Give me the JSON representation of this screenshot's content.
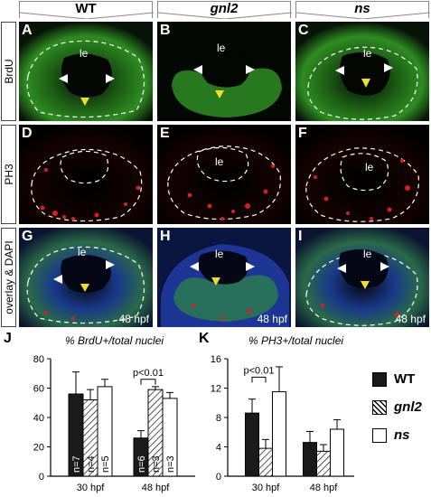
{
  "headers": {
    "wt": "WT",
    "gnl2": "gnl2",
    "ns": "ns"
  },
  "rows": {
    "brdu": "BrdU",
    "ph3": "PH3",
    "overlay": "overlay & DAPI"
  },
  "panels": {
    "A": {
      "letter": "A",
      "le": "le"
    },
    "B": {
      "letter": "B",
      "le": "le"
    },
    "C": {
      "letter": "C",
      "le": "le"
    },
    "D": {
      "letter": "D",
      "le": "le"
    },
    "E": {
      "letter": "E",
      "le": "le"
    },
    "F": {
      "letter": "F",
      "le": "le"
    },
    "G": {
      "letter": "G",
      "le": "le",
      "stage": "48 hpf"
    },
    "H": {
      "letter": "H",
      "le": "le",
      "stage": "48 hpf"
    },
    "I": {
      "letter": "I",
      "le": "le",
      "stage": "48 hpf"
    }
  },
  "colors": {
    "wt": "#1a1a1a",
    "gnl2": "#ffffff",
    "ns": "#ffffff",
    "brdu": "#39a028",
    "ph3": "#d42020",
    "dapi": "#1f3a9e"
  },
  "legend": [
    {
      "label": "WT",
      "fill": "solid"
    },
    {
      "label": "gnl2",
      "fill": "hatched"
    },
    {
      "label": "ns",
      "fill": "open"
    }
  ],
  "chart_data": [
    {
      "letter": "J",
      "type": "bar",
      "title": "% BrdU+/total nuclei",
      "categories": [
        "30 hpf",
        "48 hpf"
      ],
      "ylim": [
        0,
        80
      ],
      "yticks": [
        "0",
        "20",
        "40",
        "60",
        "80"
      ],
      "series": [
        {
          "name": "WT",
          "values": [
            56,
            26
          ],
          "errors": [
            15,
            5
          ],
          "n": [
            "n=7",
            "n=6"
          ]
        },
        {
          "name": "gnl2",
          "values": [
            52,
            59
          ],
          "errors": [
            7,
            2
          ],
          "n": [
            "n=4",
            "n=3"
          ]
        },
        {
          "name": "ns",
          "values": [
            61,
            53
          ],
          "errors": [
            5,
            4
          ],
          "n": [
            "n=5",
            "n=3"
          ]
        }
      ],
      "annotation": "p<0.01"
    },
    {
      "letter": "K",
      "type": "bar",
      "title": "% PH3+/total nuclei",
      "categories": [
        "30 hpf",
        "48 hpf"
      ],
      "ylim": [
        0,
        16
      ],
      "yticks": [
        "0",
        "4",
        "8",
        "12",
        "16"
      ],
      "series": [
        {
          "name": "WT",
          "values": [
            8.6,
            4.6
          ],
          "errors": [
            1.9,
            1.5
          ]
        },
        {
          "name": "gnl2",
          "values": [
            3.8,
            3.4
          ],
          "errors": [
            1.2,
            0.9
          ]
        },
        {
          "name": "ns",
          "values": [
            11.5,
            6.4
          ],
          "errors": [
            3.4,
            1.3
          ]
        }
      ],
      "annotation": "p<0.01"
    }
  ]
}
